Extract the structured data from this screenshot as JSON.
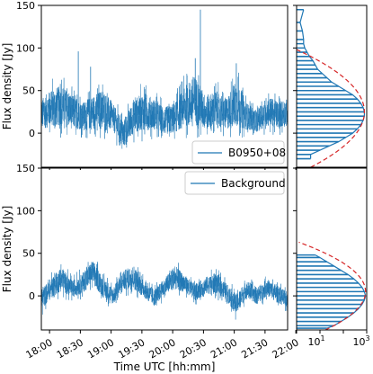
{
  "chart_data": [
    {
      "type": "line",
      "panel": "top-left",
      "ylabel": "Flux density [Jy]",
      "ylim": [
        -40,
        150
      ],
      "yticks": [
        "150",
        "100",
        "50",
        "0"
      ],
      "legend": {
        "label": "B0950+08",
        "placement": "lower-right"
      },
      "x_range": [
        "17:52",
        "21:52"
      ],
      "series": [
        {
          "name": "B0950+08",
          "color": "#1f77b4",
          "x_minutes": [
            0,
            10,
            20,
            30,
            40,
            50,
            60,
            70,
            80,
            90,
            100,
            110,
            120,
            130,
            140,
            150,
            160,
            170,
            180,
            190,
            200,
            210,
            220,
            230,
            240
          ],
          "y_mean": [
            22,
            30,
            32,
            25,
            20,
            24,
            28,
            18,
            -2,
            20,
            26,
            22,
            14,
            18,
            32,
            38,
            24,
            28,
            22,
            36,
            20,
            14,
            26,
            22,
            24
          ],
          "y_spread": [
            18,
            22,
            24,
            20,
            16,
            20,
            24,
            16,
            16,
            20,
            22,
            18,
            16,
            18,
            24,
            30,
            20,
            22,
            18,
            28,
            16,
            12,
            18,
            16,
            16
          ],
          "peaks": [
            {
              "x_minutes": 36,
              "y": 96
            },
            {
              "x_minutes": 48,
              "y": 78
            },
            {
              "x_minutes": 150,
              "y": 88
            },
            {
              "x_minutes": 155,
              "y": 145
            },
            {
              "x_minutes": 190,
              "y": 82
            }
          ]
        }
      ]
    },
    {
      "type": "line",
      "panel": "bottom-left",
      "xlabel": "Time UTC [hh:mm]",
      "ylabel": "Flux density [Jy]",
      "ylim": [
        -40,
        150
      ],
      "yticks": [
        "150",
        "100",
        "50",
        "0"
      ],
      "xticks": [
        "18:00",
        "18:30",
        "19:00",
        "19:30",
        "20:00",
        "20:30",
        "21:00",
        "21:30",
        "22:00"
      ],
      "legend": {
        "label": "Background",
        "placement": "upper-right"
      },
      "series": [
        {
          "name": "Background",
          "color": "#1f77b4",
          "x_minutes": [
            0,
            10,
            20,
            30,
            40,
            50,
            60,
            70,
            80,
            90,
            100,
            110,
            120,
            130,
            140,
            150,
            160,
            170,
            180,
            190,
            200,
            210,
            220,
            230,
            240
          ],
          "y_mean": [
            -5,
            10,
            20,
            8,
            15,
            28,
            10,
            0,
            18,
            22,
            8,
            -2,
            10,
            22,
            14,
            4,
            12,
            15,
            5,
            -10,
            8,
            0,
            10,
            2,
            -5
          ],
          "y_spread": [
            12,
            12,
            14,
            10,
            12,
            14,
            12,
            10,
            12,
            14,
            10,
            10,
            10,
            14,
            10,
            10,
            10,
            12,
            10,
            12,
            10,
            10,
            10,
            10,
            10
          ]
        }
      ]
    },
    {
      "type": "histogram",
      "panel": "top-right",
      "orientation": "horizontal",
      "xscale": "log",
      "ylim": [
        -40,
        150
      ],
      "series": [
        {
          "name": "counts",
          "color": "#1f77b4",
          "bins_y": [
            -30,
            -25,
            -20,
            -15,
            -10,
            -5,
            0,
            5,
            10,
            15,
            20,
            25,
            30,
            35,
            40,
            45,
            50,
            55,
            60,
            65,
            70,
            75,
            80,
            85,
            90,
            95,
            100,
            105,
            110,
            120,
            130,
            145
          ],
          "log_counts": [
            0.6,
            0.6,
            1.0,
            1.4,
            1.8,
            2.1,
            2.4,
            2.6,
            2.75,
            2.85,
            2.9,
            2.9,
            2.85,
            2.75,
            2.6,
            2.4,
            2.1,
            1.8,
            1.5,
            1.3,
            1.1,
            0.9,
            0.8,
            0.7,
            0.55,
            0.45,
            0.35,
            0.3,
            0.3,
            0.25,
            0.15,
            0.3
          ]
        },
        {
          "name": "fit",
          "color": "#d62728",
          "style": "dashed",
          "mu": 25,
          "sigma": 20,
          "log_peak": 2.9
        }
      ]
    },
    {
      "type": "histogram",
      "panel": "bottom-right",
      "orientation": "horizontal",
      "xscale": "log",
      "xlim_exp": [
        0,
        3
      ],
      "xticks": [
        "10^0",
        "10^1",
        "10^3"
      ],
      "ylim": [
        -40,
        150
      ],
      "series": [
        {
          "name": "counts",
          "color": "#1f77b4",
          "bins_y": [
            -38,
            -35,
            -30,
            -25,
            -20,
            -15,
            -10,
            -5,
            0,
            5,
            10,
            15,
            20,
            25,
            30,
            35,
            40,
            45,
            48
          ],
          "log_counts": [
            1.3,
            1.6,
            1.9,
            2.2,
            2.45,
            2.65,
            2.8,
            2.9,
            2.95,
            2.9,
            2.8,
            2.65,
            2.45,
            2.2,
            1.9,
            1.6,
            1.3,
            1.0,
            0.8
          ]
        },
        {
          "name": "fit",
          "color": "#d62728",
          "style": "dashed",
          "mu": 5,
          "sigma": 16,
          "log_peak": 2.95
        }
      ]
    }
  ],
  "labels": {
    "top_ylabel": "Flux density [Jy]",
    "bottom_ylabel": "Flux density [Jy]",
    "xlabel": "Time UTC [hh:mm]",
    "legend_top": "B0950+08",
    "legend_bottom": "Background",
    "hist_tick_1": "10",
    "hist_tick_1_exp": "1",
    "hist_tick_2": "10",
    "hist_tick_2_exp": "3"
  }
}
